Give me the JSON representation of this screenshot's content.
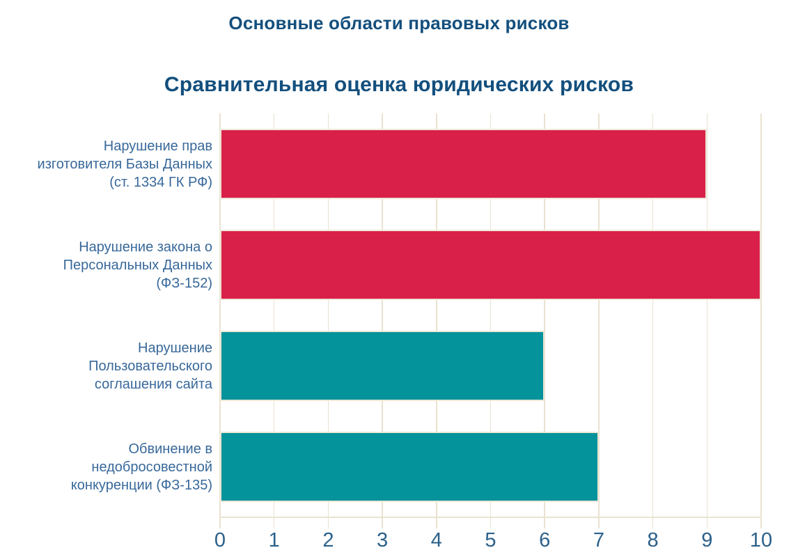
{
  "header": {
    "title": "Основные области правовых рисков",
    "subtitle": "Сравнительная оценка юридических рисков"
  },
  "chart_data": {
    "type": "bar",
    "orientation": "horizontal",
    "suptitle": "Основные области правовых рисков",
    "title": "Сравнительная оценка юридических рисков",
    "categories": [
      "Нарушение прав\nизготовителя Базы Данных\n(ст. 1334 ГК РФ)",
      "Нарушение закона о\nПерсональных Данных\n(ФЗ-152)",
      "Нарушение\nПользовательского\nсоглашения сайта",
      "Обвинение в\nнедобросовестной\nконкуренции (ФЗ-135)"
    ],
    "values": [
      9,
      10,
      6,
      7
    ],
    "bar_colors": [
      "#D92049",
      "#D92049",
      "#04929B",
      "#04929B"
    ],
    "xlabel": "",
    "ylabel": "",
    "xlim": [
      0,
      10
    ],
    "x_ticks": [
      0,
      1,
      2,
      3,
      4,
      5,
      6,
      7,
      8,
      9,
      10
    ],
    "grid": true,
    "legend": false
  },
  "colors": {
    "title": "#134F7D",
    "category_label": "#38689A",
    "tick_label": "#2B608A",
    "grid": "#E9E2D0",
    "bar_outline": "#EDE7D7",
    "red_bar": "#D92049",
    "teal_bar": "#04929B",
    "background": "#FFFFFF"
  }
}
